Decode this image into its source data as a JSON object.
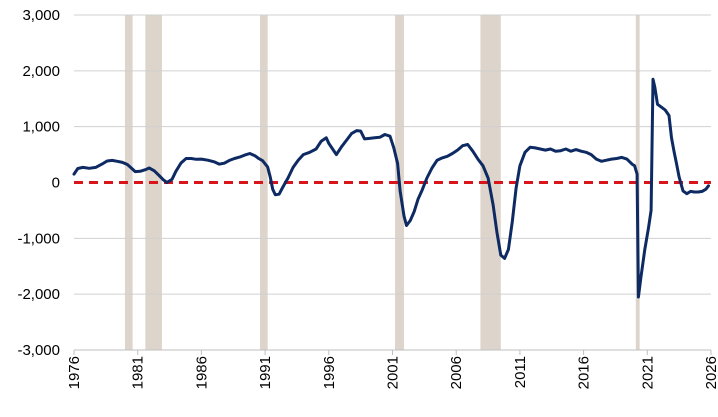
{
  "chart_data": {
    "type": "line",
    "title": "",
    "xlabel": "",
    "ylabel": "",
    "xlim": [
      1976,
      2026
    ],
    "ylim": [
      -3000,
      3000
    ],
    "yticks": [
      3000,
      2000,
      1000,
      0,
      -1000,
      -2000,
      -3000
    ],
    "ytick_labels": [
      "3,000",
      "2,000",
      "1,000",
      "0",
      "-1,000",
      "-2,000",
      "-3,000"
    ],
    "xticks": [
      1976,
      1981,
      1986,
      1991,
      1996,
      2001,
      2006,
      2011,
      2016,
      2021,
      2026
    ],
    "xtick_labels": [
      "1976",
      "1981",
      "1986",
      "1991",
      "1996",
      "2001",
      "2006",
      "2011",
      "2016",
      "2021",
      "2026"
    ],
    "grid": "horizontal",
    "legend": "none",
    "reference_line": {
      "y": 0,
      "style": "dashed",
      "color": "#d9151b"
    },
    "shaded_periods": [
      {
        "start": 1980.0,
        "end": 1980.6
      },
      {
        "start": 1981.6,
        "end": 1982.9
      },
      {
        "start": 1990.6,
        "end": 1991.2
      },
      {
        "start": 2001.2,
        "end": 2001.9
      },
      {
        "start": 2007.9,
        "end": 2009.5
      },
      {
        "start": 2020.1,
        "end": 2020.4
      }
    ],
    "series": [
      {
        "color": "#0d2a63",
        "points": [
          [
            1976.0,
            150
          ],
          [
            1976.3,
            250
          ],
          [
            1976.7,
            270
          ],
          [
            1977.2,
            255
          ],
          [
            1977.7,
            270
          ],
          [
            1978.2,
            330
          ],
          [
            1978.6,
            385
          ],
          [
            1979.0,
            395
          ],
          [
            1979.4,
            380
          ],
          [
            1979.8,
            360
          ],
          [
            1980.2,
            320
          ],
          [
            1980.5,
            260
          ],
          [
            1980.8,
            195
          ],
          [
            1981.2,
            200
          ],
          [
            1981.6,
            230
          ],
          [
            1981.9,
            260
          ],
          [
            1982.3,
            210
          ],
          [
            1982.7,
            120
          ],
          [
            1983.0,
            50
          ],
          [
            1983.3,
            0
          ],
          [
            1983.7,
            60
          ],
          [
            1984.0,
            200
          ],
          [
            1984.4,
            350
          ],
          [
            1984.8,
            430
          ],
          [
            1985.2,
            430
          ],
          [
            1985.6,
            415
          ],
          [
            1986.0,
            420
          ],
          [
            1986.5,
            400
          ],
          [
            1987.0,
            370
          ],
          [
            1987.4,
            330
          ],
          [
            1987.8,
            345
          ],
          [
            1988.2,
            395
          ],
          [
            1988.6,
            430
          ],
          [
            1989.0,
            455
          ],
          [
            1989.4,
            490
          ],
          [
            1989.8,
            520
          ],
          [
            1990.2,
            480
          ],
          [
            1990.5,
            430
          ],
          [
            1990.8,
            390
          ],
          [
            1991.2,
            280
          ],
          [
            1991.4,
            100
          ],
          [
            1991.6,
            -120
          ],
          [
            1991.8,
            -220
          ],
          [
            1992.1,
            -210
          ],
          [
            1992.4,
            -80
          ],
          [
            1992.8,
            80
          ],
          [
            1993.2,
            270
          ],
          [
            1993.6,
            400
          ],
          [
            1994.0,
            500
          ],
          [
            1994.5,
            540
          ],
          [
            1995.0,
            600
          ],
          [
            1995.4,
            740
          ],
          [
            1995.8,
            800
          ],
          [
            1996.0,
            700
          ],
          [
            1996.3,
            600
          ],
          [
            1996.6,
            500
          ],
          [
            1997.0,
            640
          ],
          [
            1997.4,
            760
          ],
          [
            1997.8,
            880
          ],
          [
            1998.2,
            930
          ],
          [
            1998.5,
            920
          ],
          [
            1998.8,
            780
          ],
          [
            1999.2,
            790
          ],
          [
            1999.6,
            800
          ],
          [
            2000.0,
            810
          ],
          [
            2000.4,
            860
          ],
          [
            2000.8,
            830
          ],
          [
            2001.1,
            620
          ],
          [
            2001.4,
            340
          ],
          [
            2001.6,
            -150
          ],
          [
            2001.9,
            -600
          ],
          [
            2002.1,
            -770
          ],
          [
            2002.4,
            -680
          ],
          [
            2002.7,
            -520
          ],
          [
            2003.0,
            -300
          ],
          [
            2003.3,
            -150
          ],
          [
            2003.7,
            80
          ],
          [
            2004.1,
            260
          ],
          [
            2004.5,
            400
          ],
          [
            2004.9,
            440
          ],
          [
            2005.3,
            470
          ],
          [
            2005.7,
            520
          ],
          [
            2006.1,
            580
          ],
          [
            2006.5,
            660
          ],
          [
            2006.9,
            680
          ],
          [
            2007.3,
            560
          ],
          [
            2007.7,
            420
          ],
          [
            2008.1,
            300
          ],
          [
            2008.5,
            80
          ],
          [
            2008.9,
            -400
          ],
          [
            2009.2,
            -900
          ],
          [
            2009.5,
            -1300
          ],
          [
            2009.8,
            -1360
          ],
          [
            2010.1,
            -1200
          ],
          [
            2010.4,
            -700
          ],
          [
            2010.7,
            -100
          ],
          [
            2011.0,
            300
          ],
          [
            2011.4,
            540
          ],
          [
            2011.8,
            630
          ],
          [
            2012.2,
            620
          ],
          [
            2012.6,
            600
          ],
          [
            2013.0,
            580
          ],
          [
            2013.4,
            600
          ],
          [
            2013.8,
            560
          ],
          [
            2014.2,
            570
          ],
          [
            2014.6,
            600
          ],
          [
            2015.0,
            560
          ],
          [
            2015.4,
            590
          ],
          [
            2015.8,
            560
          ],
          [
            2016.2,
            540
          ],
          [
            2016.6,
            500
          ],
          [
            2017.0,
            420
          ],
          [
            2017.4,
            380
          ],
          [
            2017.8,
            400
          ],
          [
            2018.2,
            420
          ],
          [
            2018.6,
            430
          ],
          [
            2019.0,
            450
          ],
          [
            2019.4,
            420
          ],
          [
            2019.8,
            330
          ],
          [
            2020.0,
            300
          ],
          [
            2020.2,
            150
          ],
          [
            2020.3,
            -2050
          ],
          [
            2020.5,
            -1700
          ],
          [
            2020.8,
            -1200
          ],
          [
            2021.1,
            -800
          ],
          [
            2021.3,
            -500
          ],
          [
            2021.45,
            1850
          ],
          [
            2021.6,
            1700
          ],
          [
            2021.8,
            1400
          ],
          [
            2022.1,
            1350
          ],
          [
            2022.4,
            1300
          ],
          [
            2022.7,
            1200
          ],
          [
            2022.9,
            800
          ],
          [
            2023.1,
            550
          ],
          [
            2023.3,
            330
          ],
          [
            2023.5,
            100
          ],
          [
            2023.8,
            -150
          ],
          [
            2024.1,
            -200
          ],
          [
            2024.4,
            -160
          ],
          [
            2024.7,
            -170
          ],
          [
            2025.0,
            -170
          ],
          [
            2025.3,
            -160
          ],
          [
            2025.6,
            -120
          ],
          [
            2025.8,
            -60
          ]
        ]
      }
    ]
  }
}
